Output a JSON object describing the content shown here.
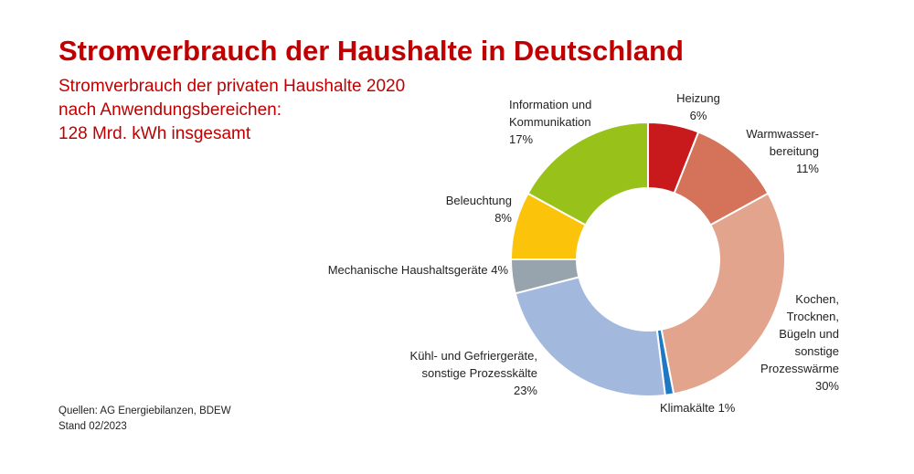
{
  "title": "Stromverbrauch der Haushalte in Deutschland",
  "subtitle": [
    "Stromverbrauch der privaten Haushalte 2020",
    "nach Anwendungsbereichen:",
    "128 Mrd. kWh insgesamt"
  ],
  "source": [
    "Quellen: AG Energiebilanzen, BDEW",
    "Stand 02/2023"
  ],
  "chart_data": {
    "type": "pie",
    "donut": true,
    "unit": "%",
    "slices": [
      {
        "label": "Heizung",
        "label_lines": [
          "Heizung",
          "6%"
        ],
        "value": 6,
        "color": "#c8191c"
      },
      {
        "label": "Warmwasserbereitung",
        "label_lines": [
          "Warmwasser-",
          "bereitung",
          "11%"
        ],
        "value": 11,
        "color": "#d4735a"
      },
      {
        "label": "Kochen, Trocknen, Bügeln und sonstige Prozesswärme",
        "label_lines": [
          "Kochen,",
          "Trocknen,",
          "Bügeln und",
          "sonstige",
          "Prozesswärme",
          "30%"
        ],
        "value": 30,
        "color": "#e3a48d"
      },
      {
        "label": "Klimakälte",
        "label_lines": [
          "Klimakälte 1%"
        ],
        "value": 1,
        "color": "#1f78c1"
      },
      {
        "label": "Kühl- und Gefriergeräte, sonstige Prozesskälte",
        "label_lines": [
          "Kühl- und Gefriergeräte,",
          "sonstige Prozesskälte",
          "23%"
        ],
        "value": 23,
        "color": "#a3b8dd"
      },
      {
        "label": "Mechanische Haushaltsgeräte",
        "label_lines": [
          "Mechanische Haushaltsgeräte 4%"
        ],
        "value": 4,
        "color": "#97a4ae"
      },
      {
        "label": "Beleuchtung",
        "label_lines": [
          "Beleuchtung",
          "8%"
        ],
        "value": 8,
        "color": "#fcc30b"
      },
      {
        "label": "Information und Kommunikation",
        "label_lines": [
          "Information und",
          "Kommunikation",
          "17%"
        ],
        "value": 17,
        "color": "#98c21a"
      }
    ]
  }
}
